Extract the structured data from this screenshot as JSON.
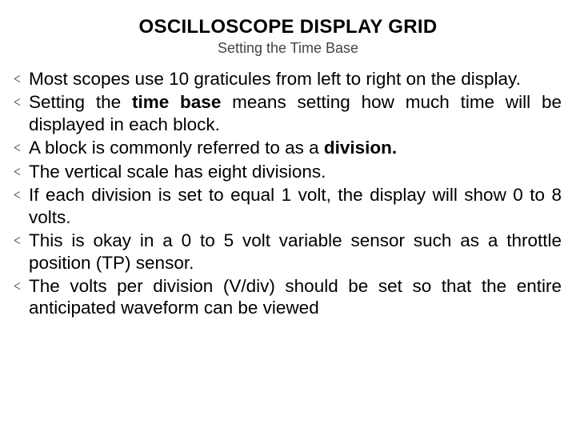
{
  "title": {
    "text": "OSCILLOSCOPE DISPLAY GRID",
    "fontsize": 24,
    "color": "#000000",
    "weight": "700"
  },
  "subtitle": {
    "text": "Setting the Time Base",
    "fontsize": 18,
    "color": "#444444"
  },
  "bullets": {
    "fontsize": 22.5,
    "color": "#000000",
    "items": [
      {
        "pre": "Most scopes use 10 graticules from left to right on the display.",
        "bold": "",
        "post": ""
      },
      {
        "pre": "Setting the ",
        "bold": "time base",
        "post": " means setting how much time will be displayed in each block."
      },
      {
        "pre": "A block is commonly referred to as a ",
        "bold": "division.",
        "post": ""
      },
      {
        "pre": "The vertical scale has eight divisions.",
        "bold": "",
        "post": ""
      },
      {
        "pre": "If each division is set to equal 1 volt, the display will show 0 to 8 volts.",
        "bold": "",
        "post": ""
      },
      {
        "pre": "This is okay in a 0 to 5 volt variable sensor such as a throttle position (TP) sensor.",
        "bold": "",
        "post": ""
      },
      {
        "pre": "The volts per division (V/div) should be set so that the entire anticipated waveform can be viewed",
        "bold": "",
        "post": ""
      }
    ]
  },
  "background_color": "#ffffff"
}
